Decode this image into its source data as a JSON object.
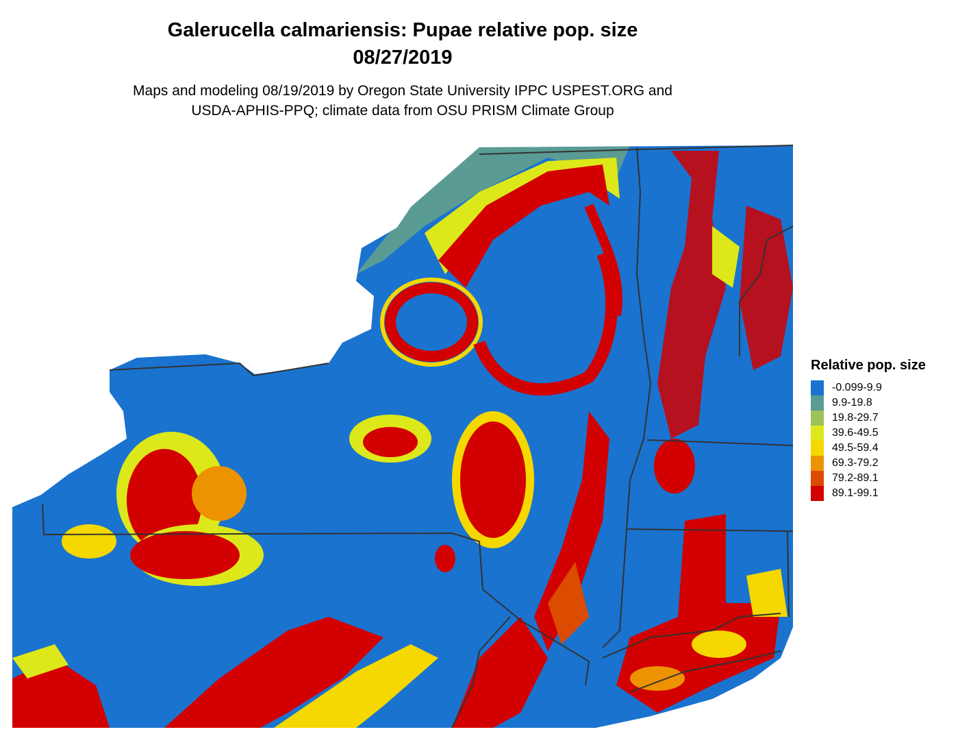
{
  "title_line1": "Galerucella calmariensis: Pupae relative pop. size",
  "title_line2": "08/27/2019",
  "subtitle_line1": "Maps and modeling 08/19/2019 by Oregon State University IPPC USPEST.ORG and",
  "subtitle_line2": "USDA-APHIS-PPQ; climate data from OSU PRISM Climate Group",
  "legend": {
    "title": "Relative pop. size",
    "items": [
      {
        "label": "-0.099-9.9",
        "color": "#1a73cf"
      },
      {
        "label": "9.9-19.8",
        "color": "#5a9b94"
      },
      {
        "label": "19.8-29.7",
        "color": "#9dc25a"
      },
      {
        "label": "39.6-49.5",
        "color": "#dde81a"
      },
      {
        "label": "49.5-59.4",
        "color": "#f5d800"
      },
      {
        "label": "69.3-79.2",
        "color": "#ed9200"
      },
      {
        "label": "79.2-89.1",
        "color": "#db4b00"
      },
      {
        "label": "89.1-99.1",
        "color": "#d20000"
      }
    ]
  }
}
